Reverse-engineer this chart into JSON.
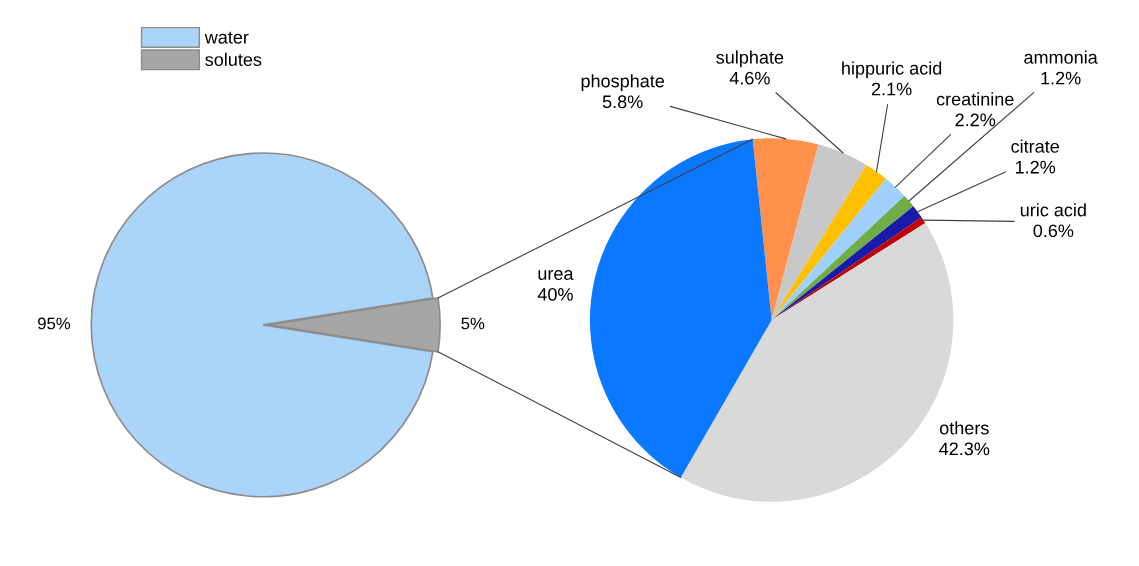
{
  "chart_data": [
    {
      "type": "pie",
      "categories": [
        "water",
        "solutes"
      ],
      "values": [
        95,
        5
      ],
      "colors": [
        "#aad4f8",
        "#a6a6a6"
      ],
      "value_labels": [
        "95%",
        "5%"
      ],
      "legend": "top left"
    },
    {
      "type": "pie",
      "categories": [
        "phosphate",
        "sulphate",
        "hippuric acid",
        "creatinine",
        "ammonia",
        "citrate",
        "uric acid",
        "others",
        "urea"
      ],
      "values": [
        5.8,
        4.6,
        2.1,
        2.2,
        1.2,
        1.2,
        0.6,
        42.3,
        40
      ],
      "colors": [
        "#ff914d",
        "#c8c8c8",
        "#ffc000",
        "#9fd0ff",
        "#70ad47",
        "#1a1aaa",
        "#c00000",
        "#d9d9d9",
        "#0a78ff"
      ],
      "value_labels": [
        "5.8%",
        "4.6%",
        "2.1%",
        "2.2%",
        "1.2%",
        "1.2%",
        "0.6%",
        "42.3%",
        "40%"
      ],
      "legend": false
    }
  ]
}
